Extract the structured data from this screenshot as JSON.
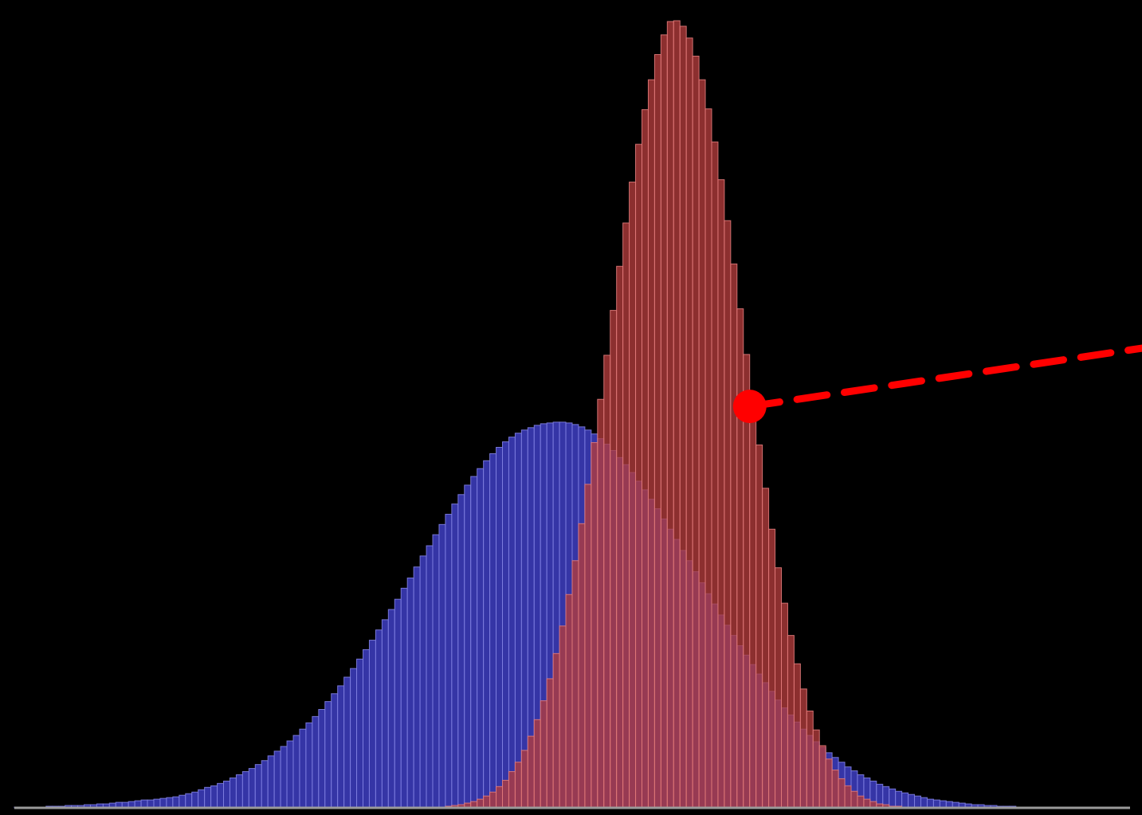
{
  "chart_data": {
    "type": "bar",
    "title": "",
    "xlabel": "",
    "ylabel": "",
    "grid": false,
    "legend": "none",
    "background": "#000000",
    "xlim": [
      0,
      176
    ],
    "ylim": [
      0,
      100
    ],
    "series": [
      {
        "color": "#3b3bb8",
        "edge": "#8080e0",
        "opacity": 0.9,
        "peak_bin": 86,
        "sigma_left": 26,
        "sigma_right": 25,
        "peak_value": 49,
        "values": [
          0.1,
          0.1,
          0.1,
          0.1,
          0.1,
          0.2,
          0.2,
          0.2,
          0.3,
          0.3,
          0.3,
          0.4,
          0.4,
          0.5,
          0.5,
          0.6,
          0.7,
          0.7,
          0.8,
          0.9,
          1.0,
          1.0,
          1.1,
          1.2,
          1.3,
          1.4,
          1.6,
          1.8,
          2.0,
          2.3,
          2.6,
          2.8,
          3.1,
          3.4,
          3.8,
          4.2,
          4.6,
          5.0,
          5.5,
          6.0,
          6.6,
          7.2,
          7.8,
          8.5,
          9.2,
          10.0,
          10.8,
          11.6,
          12.5,
          13.5,
          14.5,
          15.5,
          16.6,
          17.7,
          18.9,
          20.1,
          21.3,
          22.6,
          23.9,
          25.2,
          26.5,
          27.9,
          29.2,
          30.6,
          32.0,
          33.3,
          34.7,
          36.0,
          37.3,
          38.6,
          39.8,
          41.0,
          42.1,
          43.1,
          44.1,
          45.0,
          45.8,
          46.5,
          47.1,
          47.6,
          48.0,
          48.3,
          48.6,
          48.8,
          48.9,
          49.0,
          49.0,
          48.9,
          48.7,
          48.4,
          48.0,
          47.5,
          46.9,
          46.2,
          45.4,
          44.5,
          43.6,
          42.6,
          41.5,
          40.4,
          39.2,
          38.0,
          36.7,
          35.4,
          34.1,
          32.7,
          31.4,
          30.0,
          28.6,
          27.2,
          25.9,
          24.5,
          23.2,
          21.9,
          20.6,
          19.4,
          18.2,
          17.0,
          15.9,
          14.8,
          13.7,
          12.7,
          11.8,
          10.9,
          10.0,
          9.2,
          8.4,
          7.7,
          7.0,
          6.4,
          5.8,
          5.2,
          4.7,
          4.2,
          3.8,
          3.4,
          3.0,
          2.7,
          2.4,
          2.1,
          1.9,
          1.7,
          1.5,
          1.3,
          1.1,
          1.0,
          0.9,
          0.8,
          0.7,
          0.6,
          0.5,
          0.4,
          0.4,
          0.3,
          0.3,
          0.2,
          0.2,
          0.2,
          0.1,
          0.1,
          0.1,
          0.1,
          0.1,
          0.1,
          0.0,
          0.0,
          0.0,
          0.0,
          0.0,
          0.0,
          0.0,
          0.0,
          0.0,
          0.0,
          0.0,
          0.0,
          0.0,
          0.0,
          0.0,
          0.0,
          0.0,
          0.0
        ]
      },
      {
        "color": "#b33c3c",
        "edge": "#e07a7a",
        "opacity": 0.78,
        "peak_bin": 102,
        "sigma": 11,
        "peak_value": 100,
        "values": [
          0,
          0,
          0,
          0,
          0,
          0,
          0,
          0,
          0,
          0,
          0,
          0,
          0,
          0,
          0,
          0,
          0,
          0,
          0,
          0,
          0,
          0,
          0,
          0,
          0,
          0,
          0,
          0,
          0,
          0,
          0,
          0,
          0,
          0,
          0,
          0,
          0,
          0,
          0,
          0,
          0,
          0,
          0,
          0,
          0,
          0,
          0,
          0,
          0,
          0,
          0,
          0,
          0,
          0,
          0,
          0,
          0,
          0,
          0,
          0,
          0,
          0,
          0,
          0,
          0,
          0,
          0.1,
          0.1,
          0.2,
          0.3,
          0.4,
          0.6,
          0.8,
          1.1,
          1.5,
          2.0,
          2.7,
          3.5,
          4.6,
          5.8,
          7.3,
          9.1,
          11.2,
          13.6,
          16.4,
          19.6,
          23.1,
          27.1,
          31.4,
          36.1,
          41.1,
          46.4,
          51.9,
          57.5,
          63.2,
          68.8,
          74.3,
          79.5,
          84.3,
          88.7,
          92.5,
          95.7,
          98.2,
          99.9,
          100.0,
          99.3,
          97.8,
          95.5,
          92.5,
          88.8,
          84.6,
          79.8,
          74.6,
          69.1,
          63.4,
          57.6,
          51.8,
          46.1,
          40.6,
          35.4,
          30.5,
          26.0,
          21.9,
          18.3,
          15.1,
          12.3,
          9.9,
          7.9,
          6.2,
          4.8,
          3.7,
          2.8,
          2.1,
          1.5,
          1.1,
          0.8,
          0.5,
          0.4,
          0.2,
          0.2,
          0.1,
          0.1,
          0,
          0,
          0,
          0,
          0,
          0,
          0,
          0,
          0,
          0,
          0,
          0,
          0,
          0,
          0,
          0,
          0,
          0,
          0,
          0,
          0,
          0,
          0,
          0,
          0,
          0,
          0,
          0,
          0,
          0,
          0,
          0,
          0,
          0,
          0,
          0,
          0,
          0,
          0,
          0,
          0,
          0,
          0,
          0,
          0,
          0,
          0,
          0,
          0,
          0
        ]
      }
    ],
    "annotation": {
      "type": "dashed-pointer",
      "color": "#ff0000",
      "anchor_bin": 114,
      "anchor_value": 51
    }
  }
}
